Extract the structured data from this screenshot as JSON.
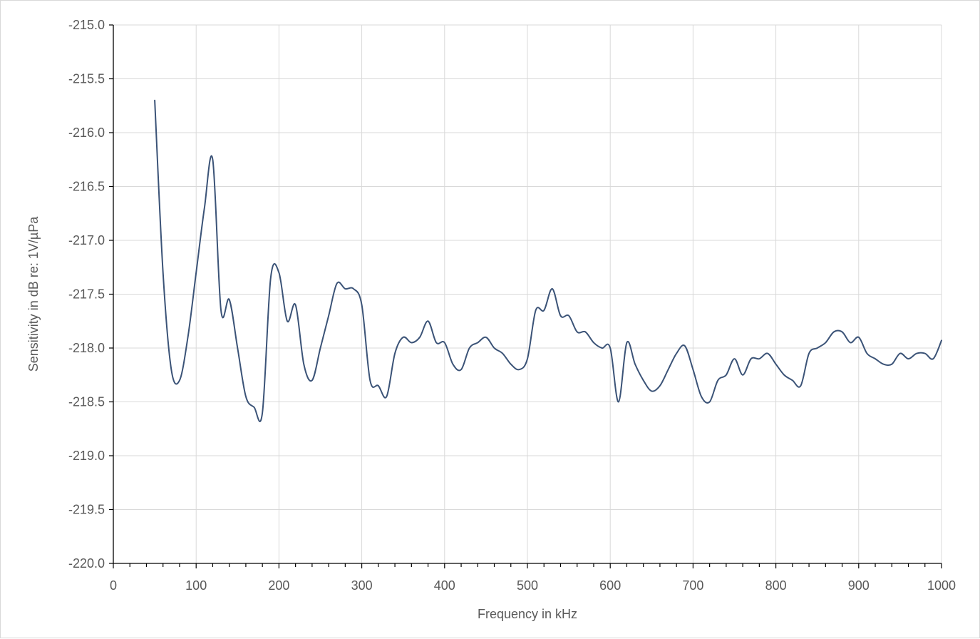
{
  "chart_data": {
    "type": "line",
    "title": "",
    "xlabel": "Frequency in kHz",
    "ylabel": "Sensitivity in dB re: 1V/µPa",
    "xlim": [
      0,
      1000
    ],
    "ylim": [
      -220.0,
      -215.0
    ],
    "x_ticks": [
      0,
      100,
      200,
      300,
      400,
      500,
      600,
      700,
      800,
      900,
      1000
    ],
    "x_tick_labels": [
      "0",
      "100",
      "200",
      "300",
      "400",
      "500",
      "600",
      "700",
      "800",
      "900",
      "1000"
    ],
    "y_ticks": [
      -215.0,
      -215.5,
      -216.0,
      -216.5,
      -217.0,
      -217.5,
      -218.0,
      -218.5,
      -219.0,
      -219.5,
      -220.0
    ],
    "y_tick_labels": [
      "-215.0",
      "-215.5",
      "-216.0",
      "-216.5",
      "-217.0",
      "-217.5",
      "-218.0",
      "-218.5",
      "-219.0",
      "-219.5",
      "-220.0"
    ],
    "x_minor_step": 20,
    "grid": true,
    "legend": "none",
    "line_color": "#3b5377",
    "grid_color": "#d9d9d9",
    "series": [
      {
        "x": [
          50,
          60,
          70,
          80,
          90,
          100,
          110,
          120,
          130,
          140,
          150,
          160,
          170,
          180,
          190,
          200,
          210,
          220,
          230,
          240,
          250,
          260,
          270,
          280,
          290,
          300,
          310,
          320,
          330,
          340,
          350,
          360,
          370,
          380,
          390,
          400,
          410,
          420,
          430,
          440,
          450,
          460,
          470,
          480,
          490,
          500,
          510,
          520,
          530,
          540,
          550,
          560,
          570,
          580,
          590,
          600,
          610,
          620,
          630,
          640,
          650,
          660,
          670,
          680,
          690,
          700,
          710,
          720,
          730,
          740,
          750,
          760,
          770,
          780,
          790,
          800,
          810,
          820,
          830,
          840,
          850,
          860,
          870,
          880,
          890,
          900,
          910,
          920,
          930,
          940,
          950,
          960,
          970,
          980,
          990,
          1000
        ],
        "y": [
          -215.7,
          -217.3,
          -218.2,
          -218.3,
          -217.9,
          -217.3,
          -216.7,
          -216.25,
          -217.65,
          -217.55,
          -218.0,
          -218.45,
          -218.55,
          -218.6,
          -217.35,
          -217.3,
          -217.75,
          -217.6,
          -218.15,
          -218.3,
          -218.0,
          -217.7,
          -217.4,
          -217.45,
          -217.45,
          -217.6,
          -218.3,
          -218.35,
          -218.45,
          -218.05,
          -217.9,
          -217.95,
          -217.9,
          -217.75,
          -217.95,
          -217.95,
          -218.15,
          -218.2,
          -218.0,
          -217.95,
          -217.9,
          -218.0,
          -218.05,
          -218.15,
          -218.2,
          -218.1,
          -217.65,
          -217.65,
          -217.45,
          -217.7,
          -217.7,
          -217.85,
          -217.85,
          -217.95,
          -218.0,
          -218.0,
          -218.5,
          -217.95,
          -218.15,
          -218.3,
          -218.4,
          -218.35,
          -218.2,
          -218.05,
          -217.98,
          -218.2,
          -218.45,
          -218.5,
          -218.3,
          -218.25,
          -218.1,
          -218.25,
          -218.1,
          -218.1,
          -218.05,
          -218.15,
          -218.25,
          -218.3,
          -218.35,
          -218.05,
          -218.0,
          -217.95,
          -217.85,
          -217.85,
          -217.95,
          -217.9,
          -218.05,
          -218.1,
          -218.15,
          -218.15,
          -218.05,
          -218.1,
          -218.05,
          -218.05,
          -218.1,
          -217.93
        ]
      }
    ]
  }
}
